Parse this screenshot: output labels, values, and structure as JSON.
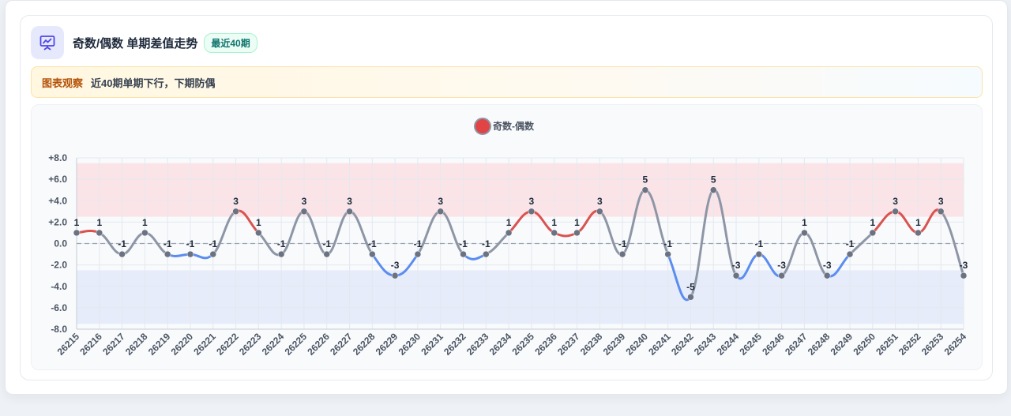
{
  "header": {
    "title": "奇数/偶数 单期差值走势",
    "badge": "最近40期",
    "icon": "chart-presentation-icon",
    "accent": "#4f46e5"
  },
  "observation": {
    "label": "图表观察",
    "text": "近40期单期下行，下期防偶"
  },
  "chart_data": {
    "type": "line",
    "legend": {
      "name": "奇数-偶数",
      "placement": "top-center",
      "color": "#e04444"
    },
    "categories": [
      "26215",
      "26216",
      "26217",
      "26218",
      "26219",
      "26220",
      "26221",
      "26222",
      "26223",
      "26224",
      "26225",
      "26226",
      "26227",
      "26228",
      "26229",
      "26230",
      "26231",
      "26232",
      "26233",
      "26234",
      "26235",
      "26236",
      "26237",
      "26238",
      "26239",
      "26240",
      "26241",
      "26242",
      "26243",
      "26244",
      "26245",
      "26246",
      "26247",
      "26248",
      "26249",
      "26250",
      "26251",
      "26252",
      "26253",
      "26254"
    ],
    "series": [
      {
        "name": "奇数-偶数",
        "values": [
          1,
          1,
          -1,
          1,
          -1,
          -1,
          -1,
          3,
          1,
          -1,
          3,
          -1,
          3,
          -1,
          -3,
          -1,
          3,
          -1,
          -1,
          1,
          3,
          1,
          1,
          3,
          -1,
          5,
          -1,
          -5,
          5,
          -3,
          -1,
          -3,
          1,
          -3,
          -1,
          1,
          3,
          1,
          3,
          -3
        ]
      }
    ],
    "y_ticks": [
      "+8.0",
      "+6.0",
      "+4.0",
      "+2.0",
      "0.0",
      "-2.0",
      "-4.0",
      "-6.0",
      "-8.0"
    ],
    "ylim": [
      -8,
      8
    ],
    "bands": [
      {
        "from": 2.5,
        "to": 7.5,
        "color": "#fbe4e7"
      },
      {
        "from": -7.5,
        "to": -2.5,
        "color": "#e6ecfa"
      }
    ],
    "zero_line": true,
    "grid": true,
    "colors": {
      "up": "#d9534f",
      "down": "#5b8def",
      "flat": "#8e96a6",
      "point": "#6b7282"
    }
  }
}
